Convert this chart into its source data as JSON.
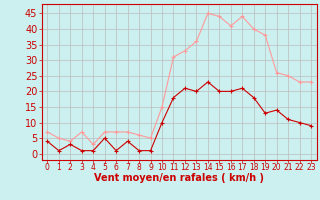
{
  "hours": [
    0,
    1,
    2,
    3,
    4,
    5,
    6,
    7,
    8,
    9,
    10,
    11,
    12,
    13,
    14,
    15,
    16,
    17,
    18,
    19,
    20,
    21,
    22,
    23
  ],
  "wind_avg": [
    4,
    1,
    3,
    1,
    1,
    5,
    1,
    4,
    1,
    1,
    10,
    18,
    21,
    20,
    23,
    20,
    20,
    21,
    18,
    13,
    14,
    11,
    10,
    9
  ],
  "wind_gust": [
    7,
    5,
    4,
    7,
    3,
    7,
    7,
    7,
    6,
    5,
    15,
    31,
    33,
    36,
    45,
    44,
    41,
    44,
    40,
    38,
    26,
    25,
    23,
    23
  ],
  "xlabel": "Vent moyen/en rafales ( km/h )",
  "yticks": [
    0,
    5,
    10,
    15,
    20,
    25,
    30,
    35,
    40,
    45
  ],
  "ymin": -2,
  "ymax": 48,
  "color_avg": "#cc0000",
  "color_gust": "#ff9999",
  "bg_color": "#ccf0f0",
  "grid_color": "#bbbbbb",
  "axis_color": "#cc0000",
  "tick_color": "#cc0000",
  "xlabel_color": "#cc0000",
  "xlabel_fontsize": 7,
  "ytick_fontsize": 7,
  "xtick_fontsize": 5.5
}
